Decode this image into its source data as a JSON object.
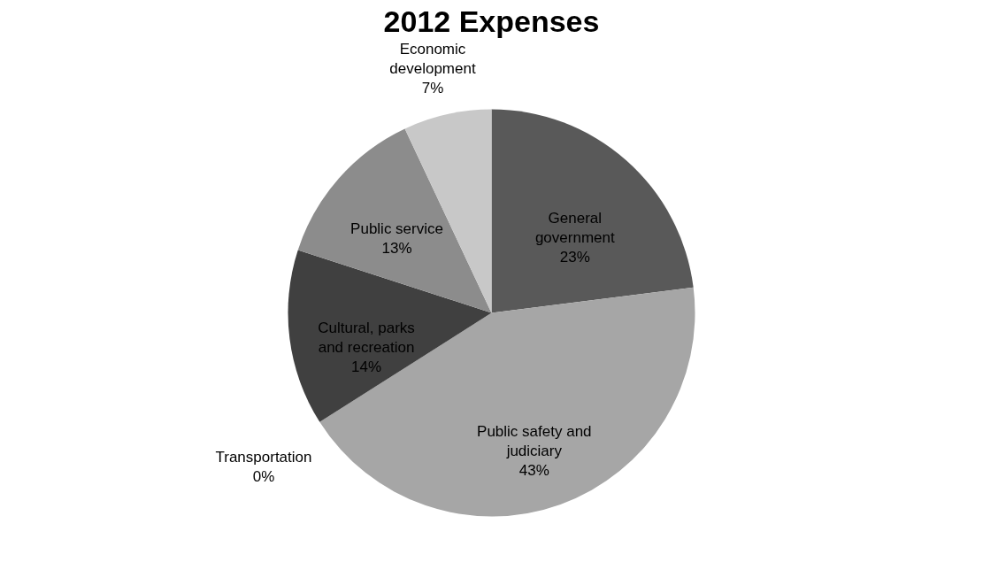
{
  "chart_data": {
    "type": "pie",
    "title": "2012 Expenses",
    "categories": [
      "General government",
      "Public safety and judiciary",
      "Transportation",
      "Cultural, parks and recreation",
      "Public service",
      "Economic development"
    ],
    "values": [
      23,
      43,
      0,
      14,
      13,
      7
    ],
    "value_labels": [
      "23%",
      "43%",
      "0%",
      "14%",
      "13%",
      "7%"
    ],
    "colors": [
      "#595959",
      "#a6a6a6",
      "#7f7f7f",
      "#404040",
      "#8c8c8c",
      "#c8c8c8"
    ],
    "legend": false
  }
}
